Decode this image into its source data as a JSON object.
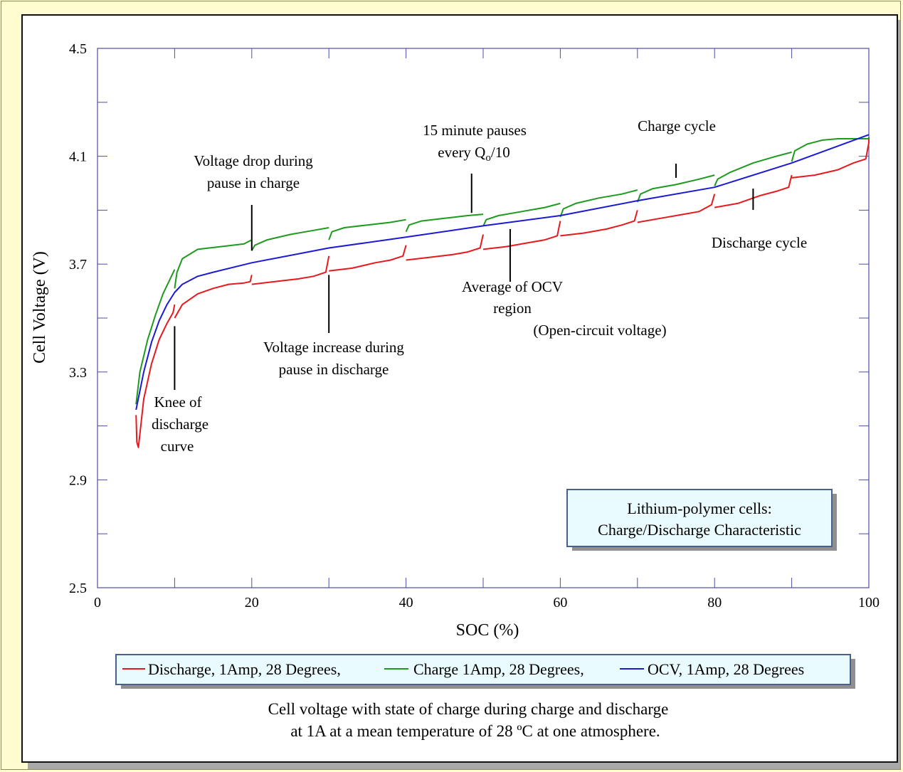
{
  "chart_data": {
    "type": "line",
    "xlabel": "SOC (%)",
    "ylabel": "Cell Voltage (V)",
    "xlim": [
      0,
      100
    ],
    "ylim": [
      2.5,
      4.5
    ],
    "xticks": [
      0,
      20,
      40,
      60,
      80,
      100
    ],
    "yticks": [
      2.5,
      2.9,
      3.3,
      3.7,
      4.1,
      4.5
    ],
    "grid": false,
    "legend_position": "bottom",
    "info_box": [
      "Lithium-polymer cells:",
      "Charge/Discharge Characteristic"
    ],
    "caption": [
      "Cell voltage with state of charge during charge and discharge",
      "at 1A at a mean temperature of 28 ºC at one atmosphere."
    ],
    "annotations": [
      {
        "lines": [
          "Knee of",
          "discharge",
          "curve"
        ],
        "x": 10,
        "y": 3.47
      },
      {
        "lines": [
          "Voltage drop during",
          "pause in charge"
        ],
        "x": 20,
        "y": 3.75
      },
      {
        "lines": [
          "Voltage increase during",
          "pause in discharge"
        ],
        "x": 30,
        "y": 3.66
      },
      {
        "lines": [
          "15 minute pauses",
          "every Q",
          "o",
          "/10"
        ],
        "x": 48.5,
        "y": 3.89
      },
      {
        "lines": [
          "Average of OCV",
          "region",
          "(Open-circuit voltage)"
        ],
        "x": 53.5,
        "y": 3.83
      },
      {
        "lines": [
          "Charge cycle"
        ],
        "x": 75,
        "y": 4.02
      },
      {
        "lines": [
          "Discharge cycle"
        ],
        "x": 85,
        "y": 3.98
      }
    ],
    "series": [
      {
        "name": "Discharge, 1Amp, 28 Degrees,",
        "color": "#e8191d",
        "segments": [
          [
            [
              5,
              3.14
            ],
            [
              5.1,
              3.04
            ],
            [
              5.3,
              3.02
            ],
            [
              6,
              3.2
            ],
            [
              7,
              3.33
            ],
            [
              8,
              3.42
            ],
            [
              9,
              3.48
            ],
            [
              9.8,
              3.52
            ],
            [
              10,
              3.55
            ]
          ],
          [
            [
              10,
              3.5
            ],
            [
              11,
              3.55
            ],
            [
              13,
              3.59
            ],
            [
              15,
              3.61
            ],
            [
              17,
              3.625
            ],
            [
              19,
              3.63
            ],
            [
              19.8,
              3.635
            ],
            [
              20,
              3.66
            ]
          ],
          [
            [
              20,
              3.625
            ],
            [
              23,
              3.635
            ],
            [
              26,
              3.645
            ],
            [
              28,
              3.655
            ],
            [
              29.6,
              3.67
            ],
            [
              30,
              3.73
            ]
          ],
          [
            [
              30,
              3.675
            ],
            [
              33,
              3.685
            ],
            [
              36,
              3.705
            ],
            [
              38,
              3.715
            ],
            [
              39.6,
              3.73
            ],
            [
              40,
              3.77
            ]
          ],
          [
            [
              40,
              3.715
            ],
            [
              43,
              3.725
            ],
            [
              46,
              3.735
            ],
            [
              48,
              3.745
            ],
            [
              49.6,
              3.76
            ],
            [
              50,
              3.81
            ]
          ],
          [
            [
              50,
              3.755
            ],
            [
              53,
              3.765
            ],
            [
              56,
              3.78
            ],
            [
              58,
              3.79
            ],
            [
              59.6,
              3.805
            ],
            [
              60,
              3.86
            ]
          ],
          [
            [
              60,
              3.805
            ],
            [
              63,
              3.815
            ],
            [
              66,
              3.83
            ],
            [
              68,
              3.845
            ],
            [
              69.6,
              3.86
            ],
            [
              70,
              3.9
            ]
          ],
          [
            [
              70,
              3.855
            ],
            [
              73,
              3.87
            ],
            [
              76,
              3.885
            ],
            [
              78,
              3.895
            ],
            [
              79.6,
              3.92
            ],
            [
              80,
              3.96
            ]
          ],
          [
            [
              80,
              3.91
            ],
            [
              83,
              3.925
            ],
            [
              86,
              3.955
            ],
            [
              88,
              3.97
            ],
            [
              89.6,
              3.985
            ],
            [
              90,
              4.03
            ]
          ],
          [
            [
              90,
              4.02
            ],
            [
              93,
              4.03
            ],
            [
              96,
              4.05
            ],
            [
              98,
              4.075
            ],
            [
              99.6,
              4.09
            ],
            [
              100,
              4.15
            ]
          ],
          [
            [
              100,
              4.15
            ],
            [
              100,
              4.17
            ]
          ]
        ]
      },
      {
        "name": "Charge 1Amp, 28 Degrees,",
        "color": "#1e9a1e",
        "segments": [
          [
            [
              5,
              3.18
            ],
            [
              5.5,
              3.3
            ],
            [
              6.5,
              3.42
            ],
            [
              7.5,
              3.51
            ],
            [
              8.5,
              3.59
            ],
            [
              9.5,
              3.65
            ],
            [
              10,
              3.68
            ]
          ],
          [
            [
              10,
              3.61
            ],
            [
              10.3,
              3.67
            ],
            [
              11,
              3.72
            ],
            [
              13,
              3.755
            ],
            [
              16,
              3.765
            ],
            [
              19,
              3.775
            ],
            [
              20,
              3.79
            ]
          ],
          [
            [
              20,
              3.75
            ],
            [
              20.4,
              3.77
            ],
            [
              22,
              3.79
            ],
            [
              25,
              3.81
            ],
            [
              28,
              3.825
            ],
            [
              30,
              3.835
            ]
          ],
          [
            [
              30,
              3.79
            ],
            [
              30.4,
              3.82
            ],
            [
              32,
              3.835
            ],
            [
              35,
              3.845
            ],
            [
              38,
              3.855
            ],
            [
              40,
              3.865
            ]
          ],
          [
            [
              40,
              3.82
            ],
            [
              40.4,
              3.845
            ],
            [
              42,
              3.86
            ],
            [
              45,
              3.87
            ],
            [
              48,
              3.88
            ],
            [
              50,
              3.885
            ]
          ],
          [
            [
              50,
              3.84
            ],
            [
              50.4,
              3.865
            ],
            [
              52,
              3.88
            ],
            [
              55,
              3.895
            ],
            [
              58,
              3.91
            ],
            [
              60,
              3.925
            ]
          ],
          [
            [
              60,
              3.875
            ],
            [
              60.4,
              3.905
            ],
            [
              62,
              3.925
            ],
            [
              65,
              3.945
            ],
            [
              68,
              3.96
            ],
            [
              70,
              3.975
            ]
          ],
          [
            [
              70,
              3.93
            ],
            [
              70.4,
              3.96
            ],
            [
              72,
              3.98
            ],
            [
              75,
              3.995
            ],
            [
              78,
              4.015
            ],
            [
              80,
              4.03
            ]
          ],
          [
            [
              80,
              3.99
            ],
            [
              80.4,
              4.015
            ],
            [
              82,
              4.04
            ],
            [
              85,
              4.075
            ],
            [
              88,
              4.1
            ],
            [
              90,
              4.115
            ]
          ],
          [
            [
              90,
              4.08
            ],
            [
              90.4,
              4.12
            ],
            [
              92,
              4.145
            ],
            [
              94,
              4.16
            ],
            [
              96,
              4.165
            ],
            [
              100,
              4.165
            ]
          ]
        ]
      },
      {
        "name": "OCV, 1Amp, 28 Degrees",
        "color": "#1a1ad6",
        "segments": [
          [
            [
              5,
              3.16
            ],
            [
              6,
              3.3
            ],
            [
              7,
              3.41
            ],
            [
              8,
              3.49
            ],
            [
              9,
              3.55
            ],
            [
              10,
              3.595
            ],
            [
              11,
              3.625
            ],
            [
              13,
              3.655
            ],
            [
              15,
              3.67
            ],
            [
              20,
              3.705
            ],
            [
              30,
              3.76
            ],
            [
              40,
              3.8
            ],
            [
              50,
              3.842
            ],
            [
              60,
              3.88
            ],
            [
              70,
              3.935
            ],
            [
              80,
              3.985
            ],
            [
              90,
              4.075
            ],
            [
              100,
              4.18
            ]
          ]
        ]
      }
    ]
  }
}
